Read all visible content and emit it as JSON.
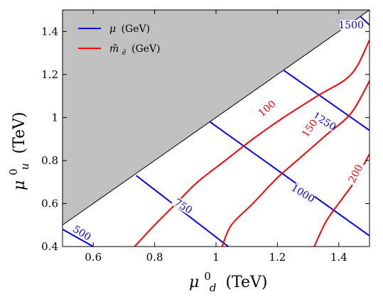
{
  "chart_data": {
    "type": "line",
    "xlabel_symbol": "μ",
    "xlabel_sub": "d",
    "xlabel_sup": "0",
    "xlabel_unit": "(TeV)",
    "ylabel_symbol": "μ",
    "ylabel_sub": "u",
    "ylabel_sup": "0",
    "ylabel_unit": "(TeV)",
    "xlim": [
      0.5,
      1.5
    ],
    "ylim": [
      0.4,
      1.5
    ],
    "xticks": [
      0.6,
      0.8,
      1.0,
      1.2,
      1.4
    ],
    "xtick_labels": [
      "0.6",
      "0.8",
      "1",
      "1.2",
      "1.4"
    ],
    "yticks": [
      0.4,
      0.6,
      0.8,
      1.0,
      1.2,
      1.4
    ],
    "ytick_labels": [
      "0.4",
      "0.6",
      "0.8",
      "1",
      "1.2",
      "1.4"
    ],
    "excluded_region": {
      "color": "#c0c0c0",
      "boundary": [
        [
          0.5,
          0.5
        ],
        [
          1.5,
          1.5
        ]
      ]
    },
    "legend": {
      "placement": "top-left",
      "entries": [
        {
          "symbol": "μ",
          "unit": "(GeV)",
          "color": "#0000ff"
        },
        {
          "symbol": "m̃",
          "sub": "ẽ",
          "unit": "(GeV)",
          "color": "#ff0000"
        }
      ]
    },
    "series": [
      {
        "group": "mu",
        "color": "#0000ff",
        "label": "500",
        "label_at": [
          0.56,
          0.455
        ],
        "label_angle": 32,
        "points": [
          [
            0.5,
            0.48
          ],
          [
            0.6,
            0.4
          ]
        ]
      },
      {
        "group": "mu",
        "color": "#0000ff",
        "label": "750",
        "label_at": [
          0.89,
          0.58
        ],
        "label_angle": 32,
        "points": [
          [
            0.74,
            0.73
          ],
          [
            1.04,
            0.4
          ]
        ]
      },
      {
        "group": "mu",
        "color": "#0000ff",
        "label": "1000",
        "label_at": [
          1.28,
          0.64
        ],
        "label_angle": 32,
        "points": [
          [
            0.98,
            0.98
          ],
          [
            1.5,
            0.45
          ]
        ]
      },
      {
        "group": "mu",
        "color": "#0000ff",
        "label": "1250",
        "label_at": [
          1.35,
          0.975
        ],
        "label_angle": 32,
        "points": [
          [
            1.22,
            1.22
          ],
          [
            1.5,
            0.94
          ]
        ]
      },
      {
        "group": "mu",
        "color": "#0000ff",
        "label": "1500",
        "label_at": [
          1.44,
          1.42
        ],
        "label_angle": 0,
        "points": [
          [
            1.47,
            1.47
          ],
          [
            1.5,
            1.43
          ]
        ]
      },
      {
        "group": "m",
        "color": "#ff0000",
        "label": "100",
        "label_at": [
          1.17,
          1.035
        ],
        "label_angle": -40,
        "points": [
          [
            0.735,
            0.4
          ],
          [
            0.8,
            0.5
          ],
          [
            0.87,
            0.6
          ],
          [
            0.94,
            0.7
          ],
          [
            1.03,
            0.8
          ],
          [
            1.12,
            0.9
          ],
          [
            1.22,
            1.0
          ],
          [
            1.33,
            1.1
          ],
          [
            1.44,
            1.2
          ],
          [
            1.5,
            1.36
          ]
        ]
      },
      {
        "group": "m",
        "color": "#ff0000",
        "label": "150",
        "label_at": [
          1.31,
          0.945
        ],
        "label_angle": -55,
        "points": [
          [
            1.02,
            0.4
          ],
          [
            1.05,
            0.5
          ],
          [
            1.12,
            0.6
          ],
          [
            1.2,
            0.72
          ],
          [
            1.28,
            0.82
          ],
          [
            1.36,
            0.92
          ],
          [
            1.44,
            1.02
          ],
          [
            1.5,
            1.17
          ]
        ]
      },
      {
        "group": "m",
        "color": "#ff0000",
        "label": "200",
        "label_at": [
          1.46,
          0.735
        ],
        "label_angle": -62,
        "points": [
          [
            1.32,
            0.4
          ],
          [
            1.36,
            0.52
          ],
          [
            1.41,
            0.62
          ],
          [
            1.45,
            0.7
          ],
          [
            1.5,
            0.83
          ]
        ]
      }
    ]
  }
}
